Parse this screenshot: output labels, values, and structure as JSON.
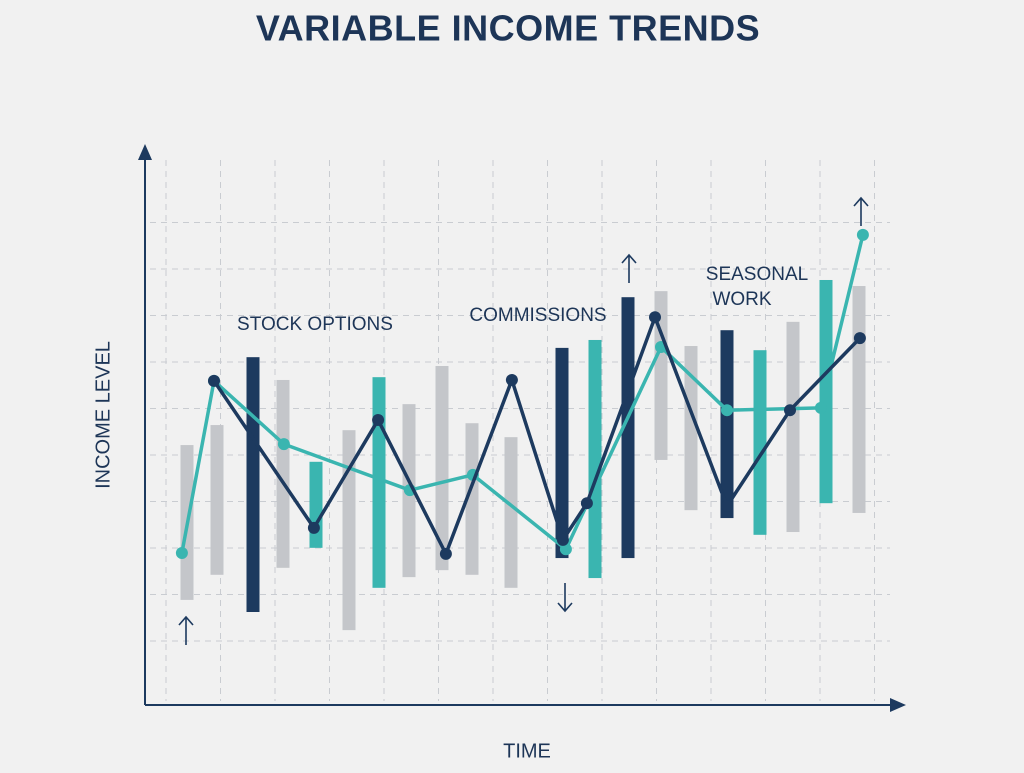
{
  "chart_data": {
    "type": "bar",
    "title": "VARIABLE INCOME TRENDS",
    "x_label": "TIME",
    "y_label": "INCOME LEVEL",
    "annotations": [
      "STOCK OPTIONS",
      "COMMISSIONS",
      "SEASONAL",
      "WORK"
    ],
    "xlim": [
      0,
      25
    ],
    "ylim": [
      0,
      12
    ],
    "grid": true,
    "bars": {
      "x": [
        1.4,
        2.4,
        3.6,
        4.6,
        5.7,
        6.8,
        7.8,
        8.8,
        9.9,
        10.9,
        12.2,
        13.9,
        15.0,
        16.1,
        17.2,
        18.2,
        19.4,
        20.5,
        21.6,
        22.7,
        23.8
      ],
      "low": [
        2.26,
        2.8,
        2.0,
        2.95,
        3.38,
        1.61,
        2.52,
        2.75,
        2.9,
        2.8,
        2.52,
        3.16,
        2.73,
        3.16,
        5.27,
        4.19,
        4.02,
        3.66,
        3.72,
        4.34,
        4.13
      ],
      "high": [
        5.59,
        6.02,
        7.48,
        6.99,
        5.23,
        5.91,
        7.05,
        6.47,
        7.29,
        6.06,
        5.76,
        7.68,
        7.85,
        8.77,
        8.9,
        7.72,
        8.06,
        7.63,
        8.24,
        9.14,
        9.01
      ],
      "colors": [
        "#c4c6ca",
        "#c4c6ca",
        "#1d3a5f",
        "#c4c6ca",
        "#3ab5b0",
        "#c4c6ca",
        "#3ab5b0",
        "#c4c6ca",
        "#c4c6ca",
        "#c4c6ca",
        "#c4c6ca",
        "#1d3a5f",
        "#3ab5b0",
        "#1d3a5f",
        "#c4c6ca",
        "#c4c6ca",
        "#1d3a5f",
        "#3ab5b0",
        "#c4c6ca",
        "#3ab5b0",
        "#c4c6ca"
      ]
    },
    "series": [
      {
        "color": "#3ab5b0",
        "x": [
          1.23,
          2.3,
          4.63,
          8.83,
          10.93,
          14.03,
          17.2,
          19.4,
          22.53,
          23.93
        ],
        "values": [
          3.27,
          6.97,
          5.61,
          4.62,
          4.95,
          3.35,
          7.7,
          6.34,
          6.39,
          10.11
        ]
      },
      {
        "color": "#1d3a5f",
        "x": [
          2.3,
          5.63,
          7.77,
          10.03,
          12.23,
          13.93,
          14.73,
          17.0,
          19.4,
          21.5,
          23.83
        ],
        "values": [
          6.97,
          3.81,
          6.13,
          3.25,
          6.99,
          3.55,
          4.34,
          8.34,
          4.28,
          6.34,
          7.89
        ]
      }
    ]
  }
}
